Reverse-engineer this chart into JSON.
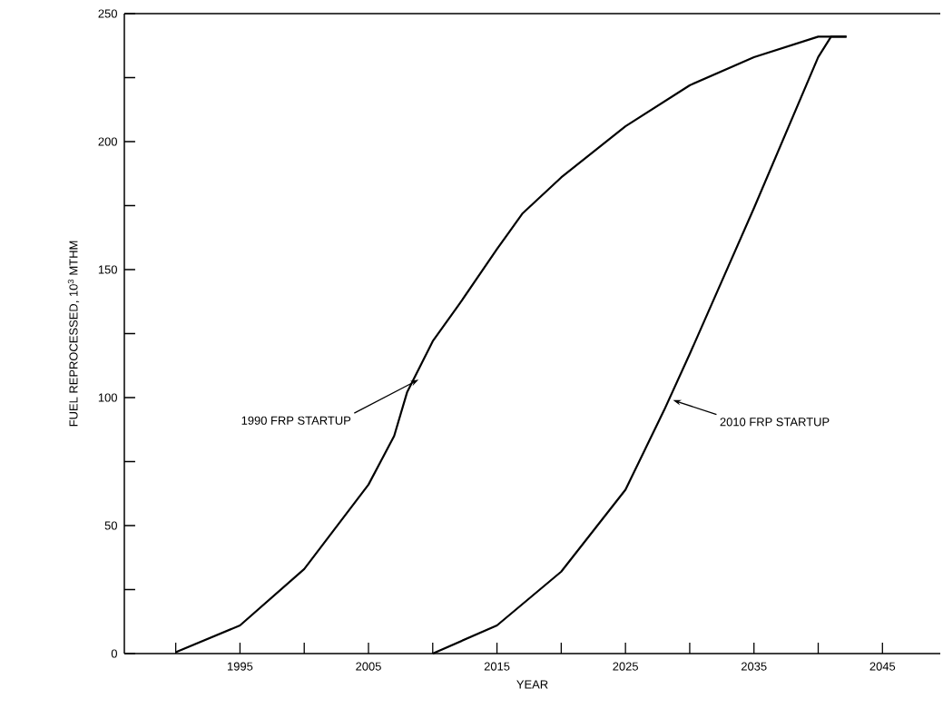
{
  "chart_data": {
    "type": "line",
    "xlabel": "YEAR",
    "ylabel": "FUEL REPROCESSED, 10$^{3}$ MTHM",
    "xlim": [
      1986,
      2049.5
    ],
    "ylim": [
      0,
      250
    ],
    "xticks": [
      {
        "value": 1990,
        "label": null
      },
      1995,
      {
        "value": 2000,
        "label": null
      },
      2005,
      {
        "value": 2010,
        "label": null
      },
      2015,
      {
        "value": 2020,
        "label": null
      },
      2025,
      {
        "value": 2030,
        "label": null
      },
      2035,
      {
        "value": 2040,
        "label": null
      },
      2045
    ],
    "yticks": [
      0,
      {
        "value": 25,
        "label": null
      },
      50,
      {
        "value": 75,
        "label": null
      },
      100,
      {
        "value": 125,
        "label": null
      },
      150,
      {
        "value": 175,
        "label": null
      },
      200,
      {
        "value": 225,
        "label": null
      },
      250
    ],
    "series": [
      {
        "color": "#000000",
        "x": [
          1990,
          1995,
          2000,
          2005,
          2007,
          2008,
          2010,
          2012,
          2015,
          2017,
          2020,
          2025,
          2030,
          2035,
          2040,
          2041,
          2042.2
        ],
        "values": [
          0.5,
          11,
          33,
          66,
          85,
          102,
          122,
          136,
          158,
          172,
          186,
          206,
          222,
          233,
          241,
          241,
          241
        ]
      },
      {
        "color": "#000000",
        "x": [
          2010,
          2015,
          2020,
          2025,
          2028,
          2030,
          2035,
          2040,
          2041,
          2042.2
        ],
        "values": [
          0,
          11,
          32,
          64,
          95,
          117,
          174,
          233,
          241,
          241
        ]
      }
    ],
    "annotations": [
      {
        "text": "1990 FRP STARTUP",
        "x": 2008.9,
        "y": 107
      },
      {
        "text": "2010 FRP STARTUP",
        "x": 2028.7,
        "y": 99
      }
    ]
  }
}
